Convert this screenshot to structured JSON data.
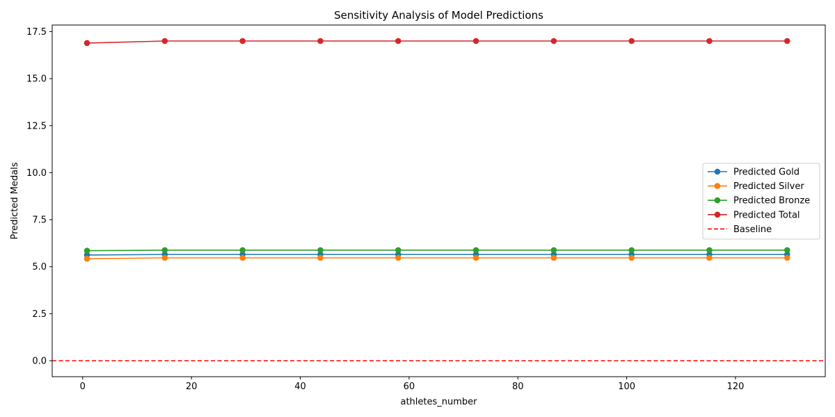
{
  "chart_data": {
    "type": "line",
    "title": "Sensitivity Analysis of Model Predictions",
    "xlabel": "athletes_number",
    "ylabel": "Predicted Medals",
    "xlim": [
      -5.6,
      136.5
    ],
    "ylim": [
      -0.85,
      17.85
    ],
    "x_ticks": [
      0,
      20,
      40,
      60,
      80,
      100,
      120
    ],
    "y_ticks": [
      0.0,
      2.5,
      5.0,
      7.5,
      10.0,
      12.5,
      15.0,
      17.5
    ],
    "y_tick_labels": [
      "0.0",
      "2.5",
      "5.0",
      "7.5",
      "10.0",
      "12.5",
      "15.0",
      "17.5"
    ],
    "x": [
      0.8,
      15.1,
      29.4,
      43.7,
      58.0,
      72.3,
      86.6,
      100.9,
      115.2,
      129.5
    ],
    "series": [
      {
        "name": "Predicted Gold",
        "color": "#1f77b4",
        "values": [
          5.62,
          5.65,
          5.65,
          5.65,
          5.65,
          5.65,
          5.65,
          5.65,
          5.65,
          5.65
        ]
      },
      {
        "name": "Predicted Silver",
        "color": "#ff7f0e",
        "values": [
          5.42,
          5.47,
          5.47,
          5.47,
          5.47,
          5.47,
          5.47,
          5.47,
          5.47,
          5.47
        ]
      },
      {
        "name": "Predicted Bronze",
        "color": "#2ca02c",
        "values": [
          5.85,
          5.88,
          5.88,
          5.88,
          5.88,
          5.88,
          5.88,
          5.88,
          5.88,
          5.88
        ]
      },
      {
        "name": "Predicted Total",
        "color": "#d62728",
        "values": [
          16.89,
          17.0,
          17.0,
          17.0,
          17.0,
          17.0,
          17.0,
          17.0,
          17.0,
          17.0
        ]
      }
    ],
    "baseline": {
      "name": "Baseline",
      "value": 0,
      "color": "#ff0000",
      "style": "dashed"
    },
    "legend_position": "center-right",
    "grid": false
  }
}
